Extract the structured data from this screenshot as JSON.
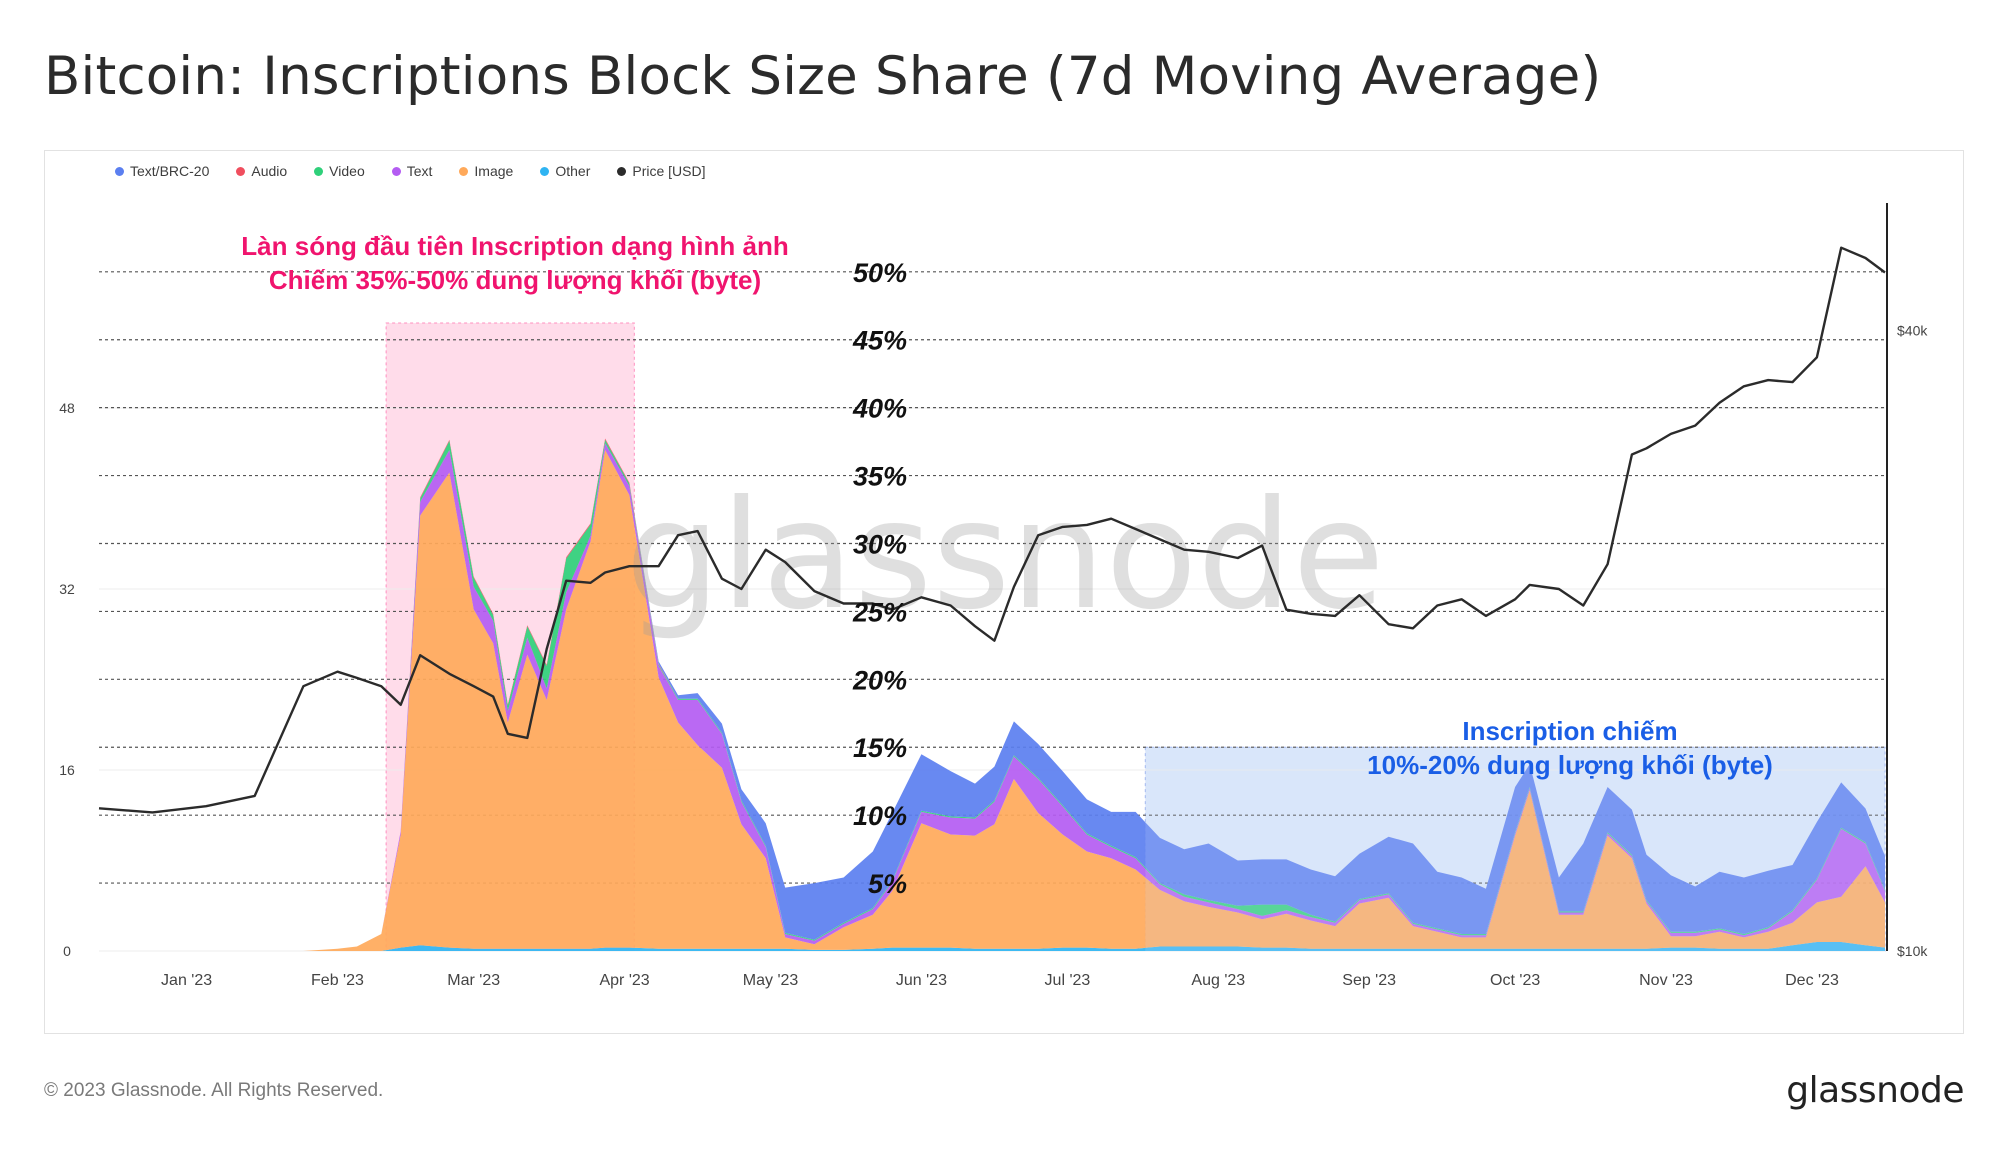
{
  "title": "Bitcoin: Inscriptions Block Size Share (7d Moving Average)",
  "footer": {
    "copyright": "© 2023 Glassnode. All Rights Reserved.",
    "logo": "glassnode"
  },
  "watermark": "glassnode",
  "colors": {
    "text_brc20": "#5b7ff0",
    "audio": "#f04e5e",
    "video": "#2fd07a",
    "text": "#b45cf2",
    "image": "#ffa95a",
    "other": "#2fb4f2",
    "price": "#2b2b2b",
    "highlight_pink": "#ffd6e6",
    "highlight_blue": "#d6e4fb",
    "annotation_pink": "#f0146e",
    "annotation_blue": "#1a5ee6"
  },
  "legend": [
    {
      "label": "Text/BRC-20",
      "color": "#5b7ff0"
    },
    {
      "label": "Audio",
      "color": "#f04e5e"
    },
    {
      "label": "Video",
      "color": "#2fd07a"
    },
    {
      "label": "Text",
      "color": "#b45cf2"
    },
    {
      "label": "Image",
      "color": "#ffa95a"
    },
    {
      "label": "Other",
      "color": "#2fb4f2"
    },
    {
      "label": "Price [USD]",
      "color": "#2b2b2b"
    }
  ],
  "annotations": {
    "first_wave": [
      "Làn sóng đầu tiên Inscription dạng hình ảnh",
      "Chiếm 35%-50% dung lượng khối (byte)"
    ],
    "second_wave": [
      "Inscription chiếm",
      "10%-20% dung lượng khối (byte)"
    ],
    "pct_labels": [
      "50%",
      "45%",
      "40%",
      "35%",
      "30%",
      "25%",
      "20%",
      "15%",
      "10%",
      "5%"
    ]
  },
  "chart_data": {
    "type": "area",
    "x_unit": "date",
    "months": [
      "Jan '23",
      "Feb '23",
      "Mar '23",
      "Apr '23",
      "May '23",
      "Jun '23",
      "Jul '23",
      "Aug '23",
      "Sep '23",
      "Oct '23",
      "Nov '23",
      "Dec '23"
    ],
    "y_left": {
      "ticks": [
        0,
        16,
        32,
        48
      ],
      "range": [
        0,
        64
      ]
    },
    "y_right": {
      "ticks": [
        "$10k",
        "$40k"
      ],
      "range": [
        10000,
        45000
      ]
    },
    "x": [
      "2022-12-14",
      "2022-12-25",
      "2023-01-05",
      "2023-01-15",
      "2023-01-25",
      "2023-02-01",
      "2023-02-05",
      "2023-02-10",
      "2023-02-14",
      "2023-02-18",
      "2023-02-24",
      "2023-03-01",
      "2023-03-05",
      "2023-03-08",
      "2023-03-12",
      "2023-03-16",
      "2023-03-20",
      "2023-03-25",
      "2023-03-28",
      "2023-04-02",
      "2023-04-08",
      "2023-04-12",
      "2023-04-16",
      "2023-04-21",
      "2023-04-25",
      "2023-04-30",
      "2023-05-04",
      "2023-05-10",
      "2023-05-16",
      "2023-05-22",
      "2023-05-26",
      "2023-06-01",
      "2023-06-07",
      "2023-06-12",
      "2023-06-16",
      "2023-06-20",
      "2023-06-25",
      "2023-06-30",
      "2023-07-05",
      "2023-07-10",
      "2023-07-15",
      "2023-07-20",
      "2023-07-25",
      "2023-07-30",
      "2023-08-05",
      "2023-08-10",
      "2023-08-15",
      "2023-08-20",
      "2023-08-25",
      "2023-08-30",
      "2023-09-05",
      "2023-09-10",
      "2023-09-15",
      "2023-09-20",
      "2023-09-25",
      "2023-10-01",
      "2023-10-04",
      "2023-10-10",
      "2023-10-15",
      "2023-10-20",
      "2023-10-25",
      "2023-10-28",
      "2023-11-02",
      "2023-11-07",
      "2023-11-12",
      "2023-11-17",
      "2023-11-22",
      "2023-11-27",
      "2023-12-02",
      "2023-12-07",
      "2023-12-12",
      "2023-12-16"
    ],
    "series": [
      {
        "name": "Other",
        "color": "#2fb4f2",
        "values": [
          0,
          0,
          0,
          0,
          0,
          0,
          0,
          0,
          0.3,
          0.5,
          0.3,
          0.2,
          0.2,
          0.2,
          0.2,
          0.2,
          0.2,
          0.2,
          0.3,
          0.3,
          0.2,
          0.2,
          0.2,
          0.2,
          0.2,
          0.2,
          0.2,
          0.1,
          0.1,
          0.2,
          0.3,
          0.3,
          0.3,
          0.2,
          0.2,
          0.2,
          0.2,
          0.3,
          0.3,
          0.2,
          0.2,
          0.4,
          0.4,
          0.4,
          0.4,
          0.3,
          0.3,
          0.2,
          0.2,
          0.2,
          0.2,
          0.2,
          0.2,
          0.2,
          0.2,
          0.2,
          0.2,
          0.2,
          0.2,
          0.2,
          0.2,
          0.2,
          0.3,
          0.3,
          0.2,
          0.2,
          0.2,
          0.5,
          0.8,
          0.8,
          0.5,
          0.3
        ]
      },
      {
        "name": "Image",
        "color": "#ffa95a",
        "values": [
          0,
          0,
          0,
          0,
          0,
          0.2,
          0.4,
          1.5,
          10,
          38,
          42,
          30,
          27,
          20,
          26,
          22,
          30,
          36,
          44,
          40,
          24,
          20,
          18,
          16,
          11,
          8,
          1,
          0.5,
          2,
          3,
          5,
          11,
          10,
          10,
          11,
          15,
          12,
          10,
          8.5,
          8,
          7,
          5,
          4,
          3.5,
          3,
          2.5,
          3,
          2.5,
          2,
          4,
          4.5,
          2,
          1.5,
          1,
          1,
          10,
          14,
          3,
          3,
          10,
          8,
          4,
          1,
          1,
          1.5,
          1,
          1.5,
          2,
          3.5,
          4,
          7,
          4
        ]
      },
      {
        "name": "Text",
        "color": "#b45cf2",
        "values": [
          0,
          0,
          0,
          0,
          0,
          0,
          0,
          0,
          0.3,
          1.2,
          2,
          2,
          2,
          1,
          1.5,
          1,
          1.5,
          0.5,
          0.6,
          0.8,
          1,
          2,
          4,
          3,
          2,
          1,
          0.3,
          0.3,
          0.3,
          0.5,
          0.8,
          1,
          1.5,
          1.5,
          2,
          2,
          3,
          2.5,
          1.5,
          1,
          1,
          0.5,
          0.4,
          0.4,
          0.3,
          0.3,
          0.3,
          0.3,
          0.3,
          0.3,
          0.3,
          0.2,
          0.2,
          0.2,
          0.2,
          0.2,
          0.2,
          0.2,
          0.2,
          0.2,
          0.2,
          0.2,
          0.3,
          0.3,
          0.2,
          0.2,
          0.3,
          1,
          2,
          6,
          2,
          1
        ]
      },
      {
        "name": "Video",
        "color": "#2fd07a",
        "values": [
          0,
          0,
          0,
          0,
          0,
          0,
          0,
          0,
          0,
          0.3,
          0.8,
          0.8,
          0.5,
          0.5,
          1,
          2,
          3,
          1,
          0.3,
          0.2,
          0.1,
          0.1,
          0.1,
          0.1,
          0.1,
          0.1,
          0.1,
          0.1,
          0.1,
          0.1,
          0.1,
          0.1,
          0.1,
          0.1,
          0.1,
          0.1,
          0.1,
          0.1,
          0.1,
          0.1,
          0.1,
          0.1,
          0.2,
          0.2,
          0.3,
          1,
          0.5,
          0.2,
          0.1,
          0.1,
          0.1,
          0.1,
          0.1,
          0.1,
          0.1,
          0.1,
          0.1,
          0.1,
          0.1,
          0.1,
          0.1,
          0.1,
          0.1,
          0.1,
          0.1,
          0.1,
          0.1,
          0.1,
          0.1,
          0.1,
          0.1,
          0.1
        ]
      },
      {
        "name": "Audio",
        "color": "#f04e5e",
        "values": [
          0,
          0,
          0,
          0,
          0,
          0,
          0,
          0,
          0,
          0.1,
          0.1,
          0.1,
          0.1,
          0.1,
          0.1,
          0.1,
          0.1,
          0.1,
          0.1,
          0.1,
          0.1,
          0,
          0,
          0,
          0,
          0,
          0,
          0,
          0,
          0,
          0,
          0,
          0,
          0,
          0,
          0,
          0,
          0,
          0,
          0,
          0,
          0,
          0,
          0,
          0,
          0,
          0,
          0,
          0,
          0,
          0,
          0,
          0,
          0,
          0,
          0,
          0,
          0,
          0,
          0,
          0,
          0,
          0,
          0,
          0,
          0,
          0,
          0,
          0,
          0,
          0,
          0
        ]
      },
      {
        "name": "Text/BRC-20",
        "color": "#5b7ff0",
        "values": [
          0,
          0,
          0,
          0,
          0,
          0,
          0,
          0,
          0,
          0,
          0,
          0,
          0,
          0,
          0,
          0,
          0,
          0,
          0,
          0,
          0.2,
          0.3,
          0.5,
          0.8,
          1,
          2,
          4,
          5,
          4,
          5,
          6,
          5,
          4,
          3,
          3,
          3,
          3,
          3,
          3,
          3,
          4,
          4,
          4,
          5,
          4,
          4,
          4,
          4,
          4,
          4,
          5,
          7,
          5,
          5,
          4,
          4,
          2,
          3,
          6,
          4,
          4,
          4,
          5,
          4,
          5,
          5,
          5,
          4,
          5,
          4,
          3,
          3
        ]
      }
    ],
    "price": [
      16900,
      16700,
      17000,
      17500,
      22800,
      23500,
      23200,
      22800,
      21900,
      24300,
      23400,
      22800,
      22300,
      20500,
      20300,
      24600,
      27900,
      27800,
      28300,
      28600,
      28600,
      30100,
      30300,
      28000,
      27500,
      29400,
      28800,
      27400,
      26800,
      26800,
      26500,
      27100,
      26700,
      25700,
      25000,
      27600,
      30100,
      30500,
      30600,
      30900,
      30400,
      29900,
      29400,
      29300,
      29000,
      29600,
      26500,
      26300,
      26200,
      27200,
      25800,
      25600,
      26700,
      27000,
      26200,
      27000,
      27700,
      27500,
      26700,
      28700,
      34000,
      34300,
      35000,
      35400,
      36500,
      37300,
      37600,
      37500,
      38700,
      44000,
      43500,
      42800
    ]
  }
}
